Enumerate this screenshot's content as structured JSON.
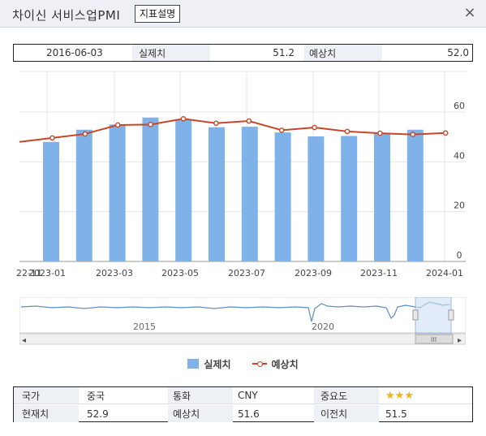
{
  "window": {
    "title": "차이신 서비스업PMI",
    "legend_button": "지표설명",
    "close_glyph": "×"
  },
  "summary": {
    "date": "2016-06-03",
    "actual_label": "실제치",
    "actual_value": "51.2",
    "forecast_label": "예상치",
    "forecast_value": "52.0"
  },
  "chart_data": {
    "type": "bar",
    "x_tick_labels": [
      "22-11",
      "2023-01",
      "2023-03",
      "2023-05",
      "2023-07",
      "2023-09",
      "2023-11",
      "2024-01"
    ],
    "y_tick_labels": [
      "0",
      "20",
      "40",
      "60"
    ],
    "ylim": [
      0,
      60
    ],
    "grid": true,
    "legend_position": "bottom",
    "series": [
      {
        "name": "실제치",
        "type": "bar",
        "color": "#7fb2e8",
        "values": [
          48.0,
          52.9,
          55.0,
          57.8,
          57.1,
          53.9,
          54.1,
          51.8,
          50.2,
          50.4,
          51.5,
          52.9
        ]
      },
      {
        "name": "예상치",
        "type": "line",
        "color": "#c8462a",
        "values": [
          48.0,
          49.6,
          51.2,
          54.8,
          55.0,
          57.3,
          55.5,
          56.4,
          52.7,
          53.8,
          52.2,
          51.5,
          51.0,
          51.6
        ]
      }
    ]
  },
  "navigator": {
    "labels": [
      "2015",
      "2020"
    ],
    "scroll_grip": "III",
    "left_arrow": "◂",
    "right_arrow": "▸"
  },
  "legend": {
    "actual": "실제치",
    "forecast": "예상치"
  },
  "info": {
    "country_label": "국가",
    "country_value": "중국",
    "currency_label": "통화",
    "currency_value": "CNY",
    "importance_label": "중요도",
    "importance_stars": 3,
    "current_label": "현재치",
    "current_value": "52.9",
    "forecast_label": "예상치",
    "forecast_value": "51.6",
    "previous_label": "이전치",
    "previous_value": "51.5"
  }
}
